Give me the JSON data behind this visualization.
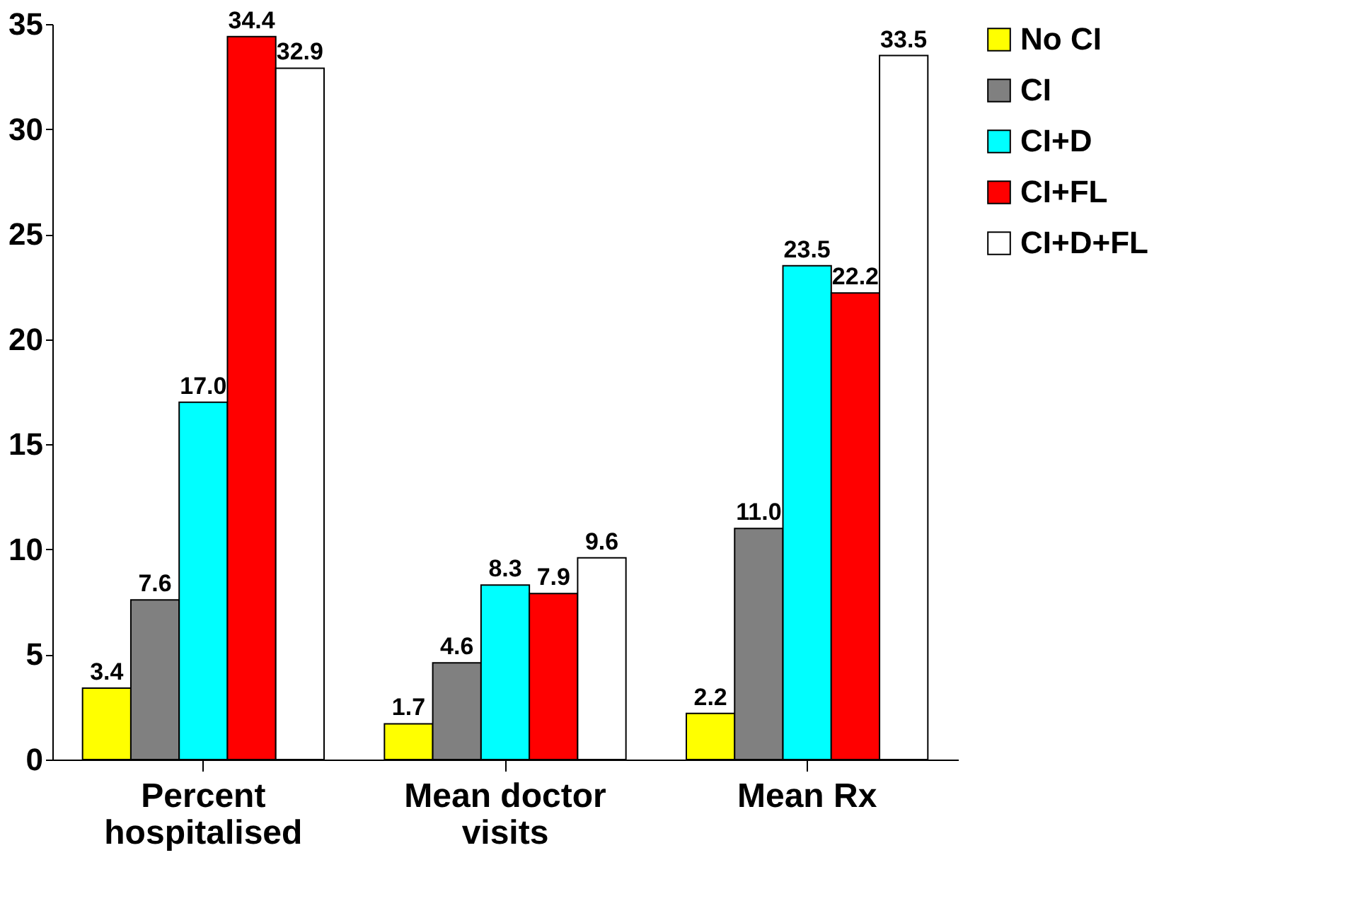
{
  "chart_data": {
    "type": "bar",
    "categories": [
      "Percent hospitalised",
      "Mean doctor visits",
      "Mean Rx"
    ],
    "series": [
      {
        "name": "No CI",
        "color": "#ffff00",
        "values": [
          3.4,
          1.7,
          2.2
        ],
        "value_labels": [
          "3.4",
          "1.7",
          "2.2"
        ]
      },
      {
        "name": "CI",
        "color": "#808080",
        "values": [
          7.6,
          4.6,
          11.0
        ],
        "value_labels": [
          "7.6",
          "4.6",
          "11.0"
        ]
      },
      {
        "name": "CI+D",
        "color": "#00ffff",
        "values": [
          17.0,
          8.3,
          23.5
        ],
        "value_labels": [
          "17.0",
          "8.3",
          "23.5"
        ]
      },
      {
        "name": "CI+FL",
        "color": "#ff0000",
        "values": [
          34.4,
          7.9,
          22.2
        ],
        "value_labels": [
          "34.4",
          "7.9",
          "22.2"
        ]
      },
      {
        "name": "CI+D+FL",
        "color": "#ffffff",
        "values": [
          32.9,
          9.6,
          33.5
        ],
        "value_labels": [
          "32.9",
          "9.6",
          "33.5"
        ]
      }
    ],
    "ylim": [
      0,
      35
    ],
    "yticks": [
      0,
      5,
      10,
      15,
      20,
      25,
      30,
      35
    ],
    "grid": false,
    "legend": "right"
  }
}
